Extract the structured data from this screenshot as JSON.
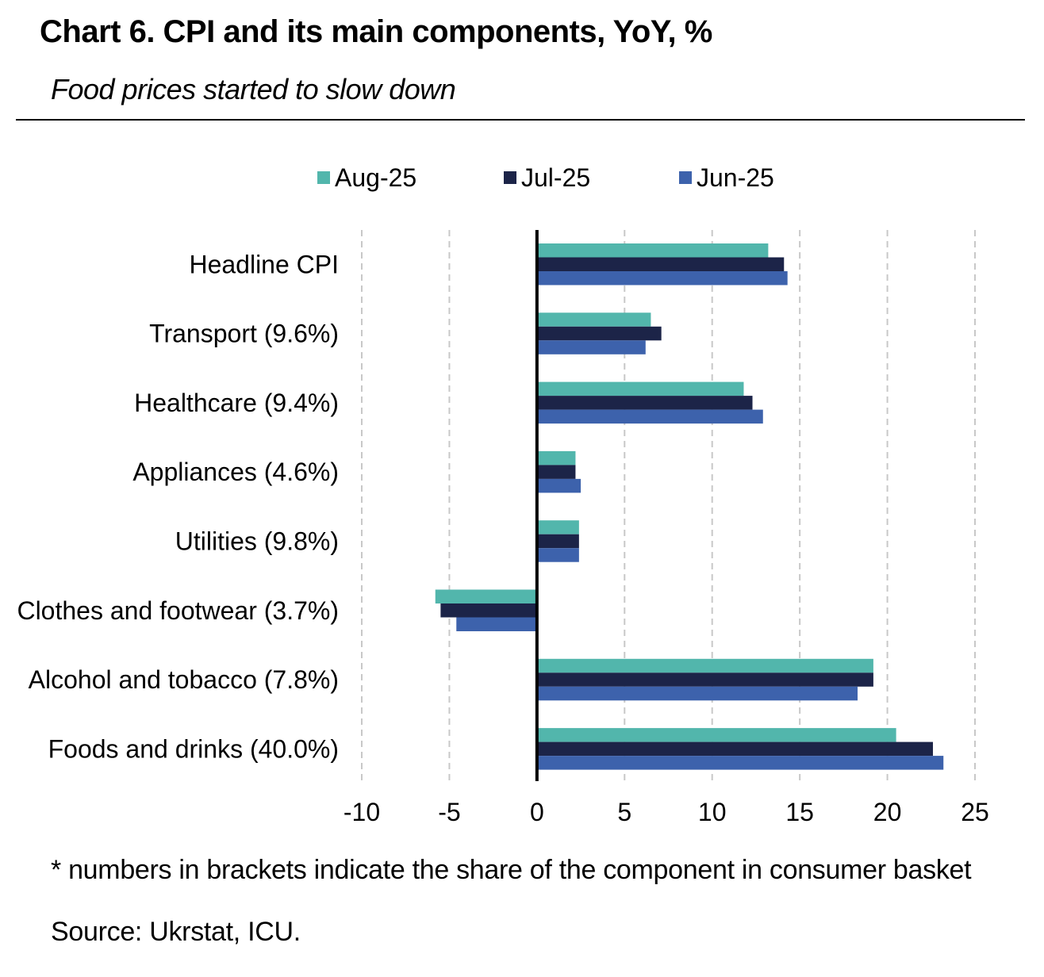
{
  "header": {
    "title": "Chart 6. CPI and its main components, YoY, %",
    "subtitle": "Food prices started to slow down"
  },
  "footer": {
    "note": "* numbers in brackets indicate the share of the component in consumer basket",
    "source": "Source: Ukrstat, ICU."
  },
  "chart_data": {
    "type": "bar",
    "orientation": "horizontal",
    "categories": [
      "Headline CPI",
      "Transport (9.6%)",
      "Healthcare (9.4%)",
      "Appliances (4.6%)",
      "Utilities (9.8%)",
      "Clothes and footwear (3.7%)",
      "Alcohol and tobacco (7.8%)",
      "Foods and drinks (40.0%)"
    ],
    "series": [
      {
        "name": "Aug-25",
        "color": "#52b6ac",
        "values": [
          13.2,
          6.5,
          11.8,
          2.2,
          2.4,
          -5.8,
          19.2,
          20.5
        ]
      },
      {
        "name": "Jul-25",
        "color": "#1c2448",
        "values": [
          14.1,
          7.1,
          12.3,
          2.2,
          2.4,
          -5.5,
          19.2,
          22.6
        ]
      },
      {
        "name": "Jun-25",
        "color": "#3d62ac",
        "values": [
          14.3,
          6.2,
          12.9,
          2.5,
          2.4,
          -4.6,
          18.3,
          23.2
        ]
      }
    ],
    "xlim": [
      -10,
      25
    ],
    "xticks": [
      -10,
      -5,
      0,
      5,
      10,
      15,
      20,
      25
    ],
    "grid": true,
    "legend": "top"
  }
}
